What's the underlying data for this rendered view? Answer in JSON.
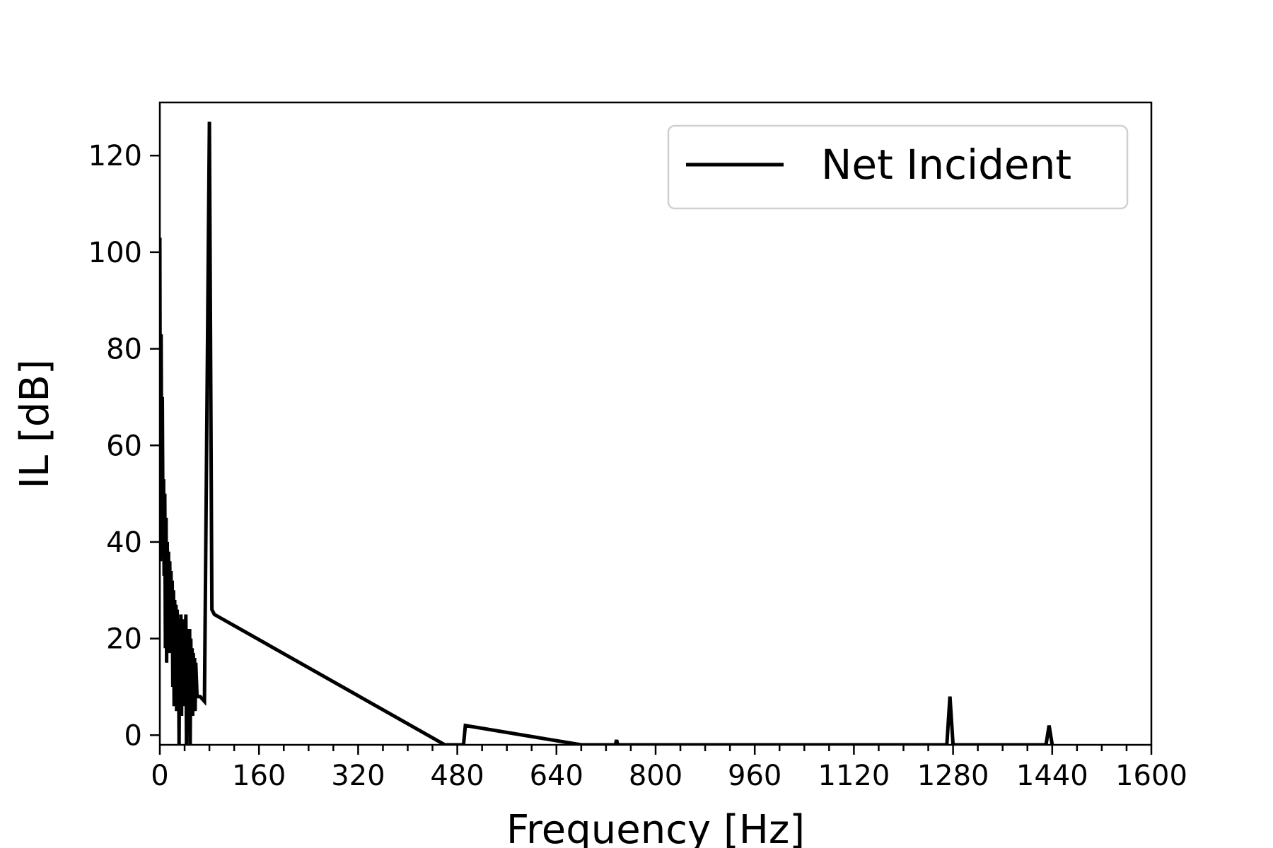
{
  "chart_data": {
    "type": "line",
    "title": "",
    "xlabel": "Frequency [Hz]",
    "ylabel": "IL [dB]",
    "xlim": [
      0,
      1600
    ],
    "ylim": [
      -2,
      131
    ],
    "grid": false,
    "legend_position": "top-right",
    "xticks": [
      "0",
      "160",
      "320",
      "480",
      "640",
      "800",
      "960",
      "1120",
      "1280",
      "1440",
      "1600"
    ],
    "yticks": [
      "0",
      "20",
      "40",
      "60",
      "80",
      "100",
      "120"
    ],
    "series": [
      {
        "name": "Net Incident",
        "color": "#000000",
        "x": [
          0,
          1,
          2,
          3,
          4,
          5,
          6,
          7,
          8,
          9,
          10,
          11,
          12,
          13,
          14,
          15,
          16,
          17,
          18,
          19,
          20,
          21,
          22,
          23,
          24,
          25,
          26,
          27,
          28,
          29,
          30,
          31,
          32,
          33,
          34,
          35,
          36,
          37,
          38,
          39,
          40,
          41,
          42,
          43,
          44,
          45,
          46,
          47,
          48,
          49,
          50,
          51,
          52,
          53,
          54,
          55,
          56,
          57,
          58,
          60,
          65,
          72,
          80,
          84,
          88,
          460,
          490,
          493,
          680,
          735,
          737,
          739,
          1270,
          1275,
          1280,
          1430,
          1435,
          1440
        ],
        "y": [
          103,
          36,
          83,
          55,
          70,
          44,
          53,
          33,
          50,
          18,
          45,
          15,
          40,
          20,
          38,
          17,
          36,
          22,
          34,
          18,
          32,
          10,
          30,
          6,
          28,
          15,
          27,
          5,
          26,
          12,
          24,
          -2,
          22,
          6,
          25,
          4,
          24,
          10,
          24,
          6,
          23,
          10,
          25,
          -2,
          22,
          5,
          20,
          4,
          22,
          -2,
          20,
          8,
          18,
          4,
          17,
          10,
          16,
          5,
          15,
          8,
          8,
          7,
          127,
          26,
          25,
          -2,
          -2,
          2,
          -2,
          -2,
          -1,
          -2,
          -2,
          8,
          -2,
          -2,
          2,
          -2
        ]
      }
    ]
  }
}
